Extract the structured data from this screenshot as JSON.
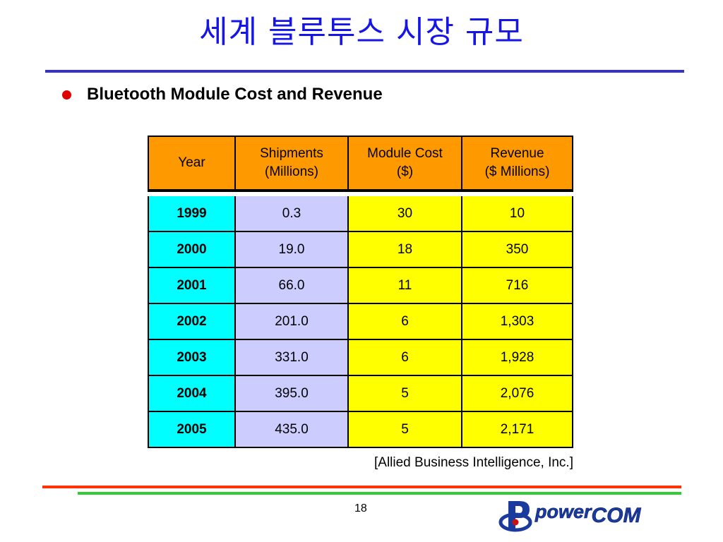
{
  "slide": {
    "title": "세계 블루투스 시장 규모",
    "bullet": "Bluetooth Module Cost and Revenue",
    "source": "[Allied Business Intelligence, Inc.]",
    "page_number": "18",
    "logo_text": "powercom"
  },
  "table": {
    "headers": [
      {
        "line1": "Year",
        "line2": ""
      },
      {
        "line1": "Shipments",
        "line2": "(Millions)"
      },
      {
        "line1": "Module Cost",
        "line2": "($)"
      },
      {
        "line1": "Revenue",
        "line2": "($ Millions)"
      }
    ],
    "rows": [
      {
        "year": "1999",
        "shipments": "0.3",
        "cost": "30",
        "revenue": "10"
      },
      {
        "year": "2000",
        "shipments": "19.0",
        "cost": "18",
        "revenue": "350"
      },
      {
        "year": "2001",
        "shipments": "66.0",
        "cost": "11",
        "revenue": "716"
      },
      {
        "year": "2002",
        "shipments": "201.0",
        "cost": "6",
        "revenue": "1,303"
      },
      {
        "year": "2003",
        "shipments": "331.0",
        "cost": "6",
        "revenue": "1,928"
      },
      {
        "year": "2004",
        "shipments": "395.0",
        "cost": "5",
        "revenue": "2,076"
      },
      {
        "year": "2005",
        "shipments": "435.0",
        "cost": "5",
        "revenue": "2,171"
      }
    ]
  },
  "colors": {
    "title": "#1515e6",
    "title_rule": "#3333cc",
    "bullet": "#e00000",
    "header_fill": "#ff9900",
    "year_fill": "#00ffff",
    "shipments_fill": "#ccccff",
    "cost_revenue_fill": "#ffff00",
    "footer_red": "#ff3300",
    "footer_green": "#33cc33",
    "logo_blue": "#1a3a9e",
    "logo_red": "#cc1111"
  }
}
